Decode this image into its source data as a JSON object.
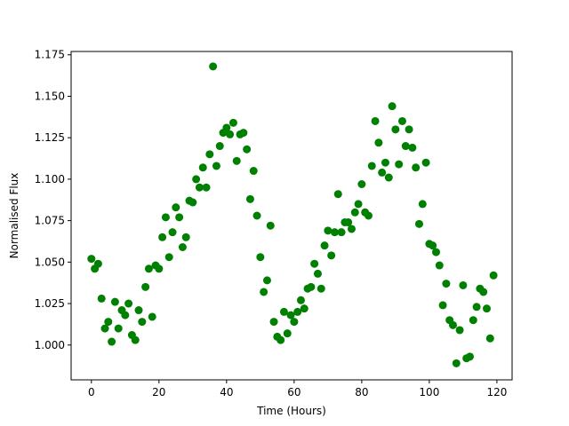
{
  "chart_data": {
    "type": "scatter",
    "xlabel": "Time (Hours)",
    "ylabel": "Normalised Flux",
    "color": "#008000",
    "x": [
      0,
      1,
      2,
      3,
      4,
      5,
      6,
      7,
      8,
      9,
      10,
      11,
      12,
      13,
      14,
      15,
      16,
      17,
      18,
      19,
      20,
      21,
      22,
      23,
      24,
      25,
      26,
      27,
      28,
      29,
      30,
      31,
      32,
      33,
      34,
      35,
      36,
      37,
      38,
      39,
      40,
      41,
      42,
      43,
      44,
      45,
      46,
      47,
      48,
      49,
      50,
      51,
      52,
      53,
      54,
      55,
      56,
      57,
      58,
      59,
      60,
      61,
      62,
      63,
      64,
      65,
      66,
      67,
      68,
      69,
      70,
      71,
      72,
      73,
      74,
      75,
      76,
      77,
      78,
      79,
      80,
      81,
      82,
      83,
      84,
      85,
      86,
      87,
      88,
      89,
      90,
      91,
      92,
      93,
      94,
      95,
      96,
      97,
      98,
      99,
      100,
      101,
      102,
      103,
      104,
      105,
      106,
      107,
      108,
      109,
      110,
      111,
      112,
      113,
      114,
      115,
      116,
      117,
      118,
      119
    ],
    "values": [
      1.052,
      1.046,
      1.049,
      1.028,
      1.01,
      1.014,
      1.002,
      1.026,
      1.01,
      1.021,
      1.018,
      1.025,
      1.006,
      1.003,
      1.021,
      1.014,
      1.035,
      1.046,
      1.017,
      1.048,
      1.046,
      1.065,
      1.077,
      1.053,
      1.068,
      1.083,
      1.077,
      1.059,
      1.065,
      1.087,
      1.086,
      1.1,
      1.095,
      1.107,
      1.095,
      1.115,
      1.168,
      1.108,
      1.12,
      1.128,
      1.131,
      1.127,
      1.134,
      1.111,
      1.127,
      1.128,
      1.118,
      1.088,
      1.105,
      1.078,
      1.053,
      1.032,
      1.039,
      1.072,
      1.014,
      1.005,
      1.003,
      1.02,
      1.007,
      1.018,
      1.014,
      1.02,
      1.027,
      1.022,
      1.034,
      1.035,
      1.049,
      1.043,
      1.034,
      1.06,
      1.069,
      1.054,
      1.068,
      1.091,
      1.068,
      1.074,
      1.074,
      1.07,
      1.08,
      1.085,
      1.097,
      1.08,
      1.078,
      1.108,
      1.135,
      1.122,
      1.104,
      1.11,
      1.101,
      1.144,
      1.13,
      1.109,
      1.135,
      1.12,
      1.13,
      1.119,
      1.107,
      1.073,
      1.085,
      1.11,
      1.061,
      1.06,
      1.056,
      1.048,
      1.024,
      1.037,
      1.015,
      1.012,
      0.989,
      1.009,
      1.036,
      0.992,
      0.993,
      1.015,
      1.023,
      1.034,
      1.032,
      1.022,
      1.004,
      1.042
    ],
    "xlim": [
      -6,
      124.5
    ],
    "ylim": [
      0.979,
      1.177
    ],
    "xticks": [
      0,
      20,
      40,
      60,
      80,
      100,
      120
    ],
    "yticks": [
      {
        "value": 1,
        "label": "1.000"
      },
      {
        "value": 1.025,
        "label": "1.025"
      },
      {
        "value": 1.05,
        "label": "1.050"
      },
      {
        "value": 1.075,
        "label": "1.075"
      },
      {
        "value": 1.1,
        "label": "1.100"
      },
      {
        "value": 1.125,
        "label": "1.125"
      },
      {
        "value": 1.15,
        "label": "1.150"
      },
      {
        "value": 1.175,
        "label": "1.175"
      }
    ],
    "grid": false
  }
}
